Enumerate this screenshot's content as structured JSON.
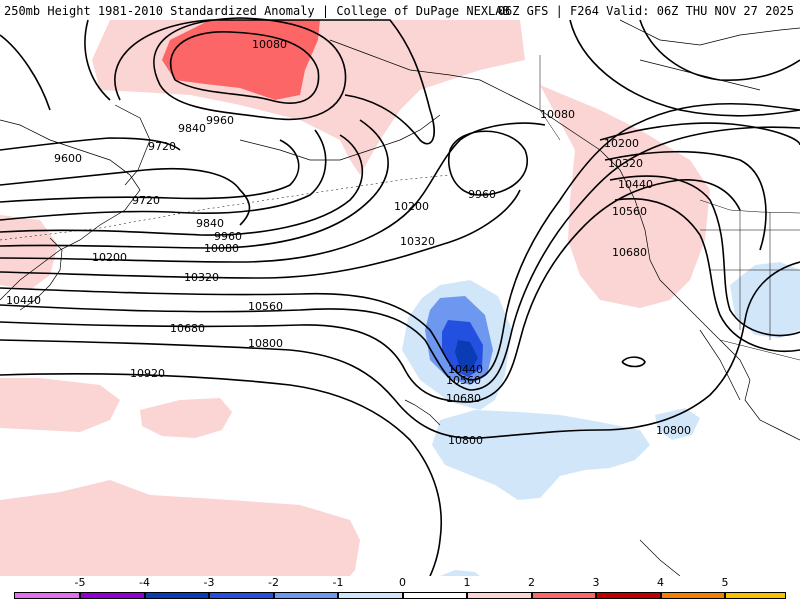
{
  "header": {
    "left_title": "250mb Height 1981-2010 Standardized Anomaly | College of DuPage NEXLAB",
    "right_title": "06Z GFS | F264 Valid: 06Z THU NOV 27 2025"
  },
  "colors": {
    "pos1": "#fbd4d4",
    "pos2": "#fc6666",
    "pos3": "#c00000",
    "pos4": "#f08000",
    "pos5": "#f7c000",
    "neg1": "#d2e6fa",
    "neg2": "#6e98f0",
    "neg3": "#2450e0",
    "neg4": "#0a3cb4",
    "neg5": "#7a00b8",
    "contour": "#000000",
    "coast": "#000000"
  },
  "contour_labels": [
    "10080",
    "9960",
    "9840",
    "9720",
    "9600",
    "9720",
    "9840",
    "9960",
    "10080",
    "10200",
    "10320",
    "10440",
    "10560",
    "10680",
    "10800",
    "10920",
    "10200",
    "10320",
    "9960",
    "10440",
    "10560",
    "10680",
    "10800",
    "10080",
    "10200",
    "10320",
    "10440",
    "10560",
    "10680",
    "10800"
  ],
  "colorbar": {
    "labels": [
      "-5",
      "-4",
      "-3",
      "-2",
      "-1",
      "0",
      "1",
      "2",
      "3",
      "4",
      "5"
    ],
    "colors": [
      "#e070f0",
      "#9400d3",
      "#0a3cb4",
      "#2450e0",
      "#6e98f0",
      "#d2e6fa",
      "#ffffff",
      "#fbd4d4",
      "#fc6666",
      "#c00000",
      "#f08000",
      "#f7c000"
    ]
  }
}
